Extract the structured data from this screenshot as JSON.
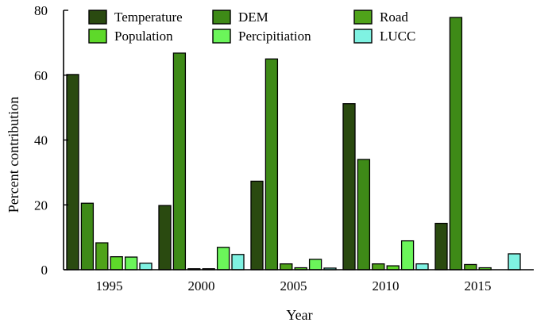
{
  "chart_data": {
    "type": "bar",
    "categories": [
      "1995",
      "2000",
      "2005",
      "2010",
      "2015"
    ],
    "series": [
      {
        "name": "Temperature",
        "color": "#2a4a10",
        "values": [
          60.2,
          19.8,
          27.3,
          51.2,
          14.3
        ]
      },
      {
        "name": "DEM",
        "color": "#3e8a17",
        "values": [
          20.5,
          66.8,
          65.0,
          34.0,
          77.8
        ]
      },
      {
        "name": "Road",
        "color": "#4fa31a",
        "values": [
          8.3,
          0.3,
          1.8,
          1.8,
          1.6
        ]
      },
      {
        "name": "Population",
        "color": "#5ed92a",
        "values": [
          4.0,
          0.3,
          0.6,
          1.2,
          0.6
        ]
      },
      {
        "name": "Percipitiation",
        "color": "#6bf55a",
        "values": [
          3.9,
          6.9,
          3.2,
          8.9,
          0.0
        ]
      },
      {
        "name": "LUCC",
        "color": "#7ff2e2",
        "values": [
          2.0,
          4.7,
          0.5,
          1.8,
          4.9
        ]
      }
    ],
    "xlabel": "Year",
    "ylabel": "Percent contribution",
    "ylim": [
      0,
      80
    ],
    "yticks": [
      0,
      20,
      40,
      60,
      80
    ],
    "legend": "top"
  }
}
